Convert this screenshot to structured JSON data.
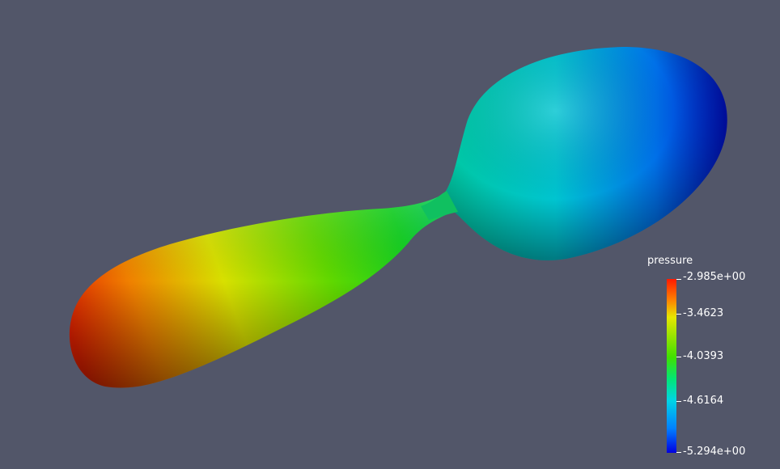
{
  "scene": {
    "background": "#525669",
    "object": "pressure-field-surface"
  },
  "legend": {
    "title": "pressure",
    "labels": [
      "-2.985e+00",
      "-3.4623",
      "-4.0393",
      "-4.6164",
      "-5.294e+00"
    ],
    "range": [
      -5.294,
      -2.985
    ],
    "colormap": [
      "#ff1a00",
      "#e6e600",
      "#40e000",
      "#00d4e6",
      "#0000e0"
    ]
  }
}
